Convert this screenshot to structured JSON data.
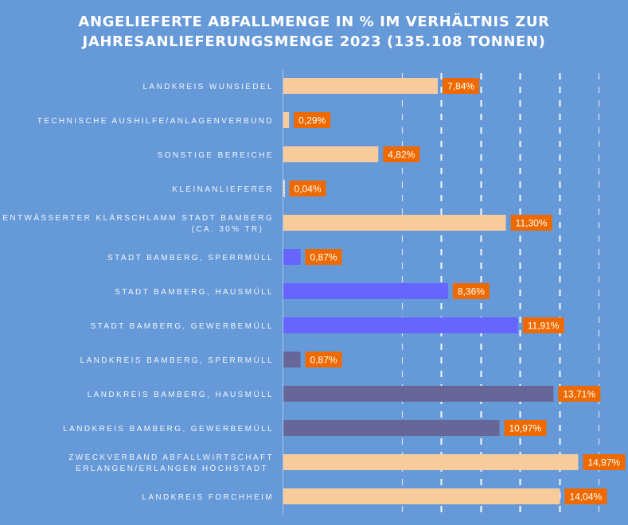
{
  "chart_data": {
    "type": "bar",
    "orientation": "horizontal",
    "title": "ANGELIEFERTE ABFALLMENGE IN % IM VERHÄLTNIS ZUR JAHRESANLIEFERUNGSMENGE 2023 (135.108 TONNEN)",
    "title_lines": [
      "ANGELIEFERTE ABFALLMENGE IN % IM VERHÄLTNIS ZUR",
      "JAHRESANLIEFERUNGSMENGE 2023 (135.108 TONNEN)"
    ],
    "xlabel": "",
    "ylabel": "",
    "xlim": [
      0,
      16
    ],
    "grid": {
      "on": true,
      "style": "dashed",
      "ticks": [
        6,
        8,
        10,
        12,
        14,
        16
      ]
    },
    "legend": "none",
    "unit": "%",
    "categories": [
      [
        "LANDKREIS WUNSIEDEL"
      ],
      [
        "TECHNISCHE AUSHILFE/ANLAGENVERBUND"
      ],
      [
        "SONSTIGE BEREICHE"
      ],
      [
        "KLEINANLIEFERER"
      ],
      [
        "ENTWÄSSERTER KLÄRSCHLAMM STADT BAMBERG",
        "(CA. 30% TR)"
      ],
      [
        "STADT BAMBERG, SPERRMÜLL"
      ],
      [
        "STADT BAMBERG, HAUSMÜLL"
      ],
      [
        "STADT BAMBERG, GEWERBEMÜLL"
      ],
      [
        "LANDKREIS BAMBERG, SPERRMÜLL"
      ],
      [
        "LANDKREIS BAMBERG, HAUSMÜLL"
      ],
      [
        "LANDKREIS BAMBERG, GEWERBEMÜLL"
      ],
      [
        "ZWECKVERBAND ABFALLWIRTSCHAFT",
        "ERLANGEN/ERLANGEN HÖCHSTADT"
      ],
      [
        "LANDKREIS FORCHHEIM"
      ]
    ],
    "values": [
      7.84,
      0.29,
      4.82,
      0.04,
      11.3,
      0.87,
      8.36,
      11.91,
      0.87,
      13.71,
      10.97,
      14.97,
      14.04
    ],
    "value_labels": [
      "7,84%",
      "0,29%",
      "4,82%",
      "0,04%",
      "11,30%",
      "0,87%",
      "8,36%",
      "11,91%",
      "0,87%",
      "13,71%",
      "10,97%",
      "14,97%",
      "14,04%"
    ],
    "bar_groups": [
      "other",
      "other",
      "other",
      "other",
      "other",
      "stadt",
      "stadt",
      "stadt",
      "landkreis",
      "landkreis",
      "landkreis",
      "other",
      "other"
    ]
  },
  "colors": {
    "background": "#6699D8",
    "bar_other": "#F8CB9C",
    "bar_stadt": "#6666FF",
    "bar_landkreis": "#666699",
    "label_bg": "#EE6A00",
    "gridline": "#FFFFFF",
    "axis": "#A9C6EC"
  }
}
